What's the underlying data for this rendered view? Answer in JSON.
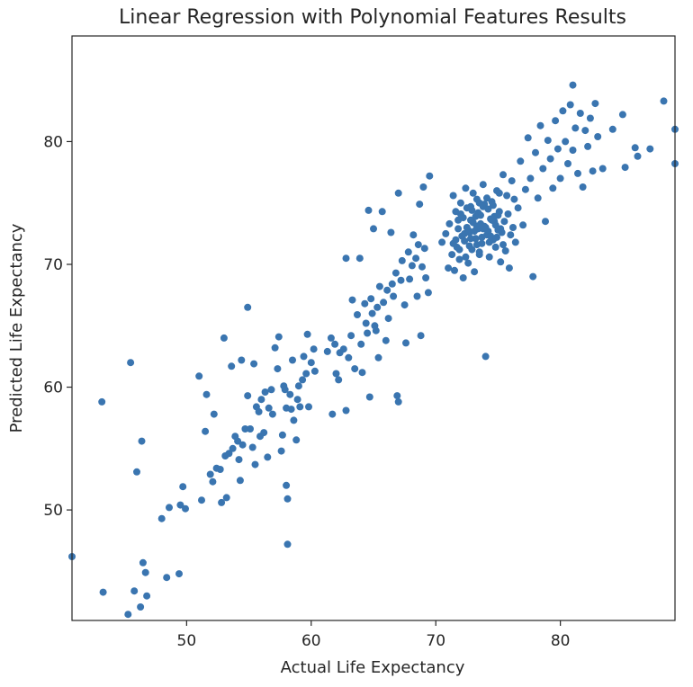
{
  "chart_data": {
    "type": "scatter",
    "title": "Linear Regression with Polynomial Features Results",
    "xlabel": "Actual Life Expectancy",
    "ylabel": "Predicted Life Expectancy",
    "xlim": [
      40.8,
      89.2
    ],
    "ylim": [
      41.0,
      88.6
    ],
    "xticks": [
      50,
      60,
      70,
      80
    ],
    "yticks": [
      50,
      60,
      70,
      80
    ],
    "grid": false,
    "color": "#3a75b0",
    "series": [
      {
        "points": [
          [
            40.8,
            46.2
          ],
          [
            43.3,
            43.3
          ],
          [
            43.2,
            58.8
          ],
          [
            45.3,
            41.5
          ],
          [
            45.5,
            62.0
          ],
          [
            45.8,
            43.4
          ],
          [
            46.0,
            53.1
          ],
          [
            46.3,
            42.1
          ],
          [
            46.5,
            45.7
          ],
          [
            46.4,
            55.6
          ],
          [
            46.7,
            44.9
          ],
          [
            46.8,
            43.0
          ],
          [
            48.0,
            49.3
          ],
          [
            48.4,
            44.5
          ],
          [
            48.6,
            50.2
          ],
          [
            49.4,
            44.8
          ],
          [
            49.5,
            50.4
          ],
          [
            49.7,
            51.9
          ],
          [
            49.9,
            50.1
          ],
          [
            51.0,
            60.9
          ],
          [
            51.2,
            50.8
          ],
          [
            51.5,
            56.4
          ],
          [
            51.6,
            59.4
          ],
          [
            51.9,
            52.9
          ],
          [
            52.1,
            52.3
          ],
          [
            52.2,
            57.8
          ],
          [
            52.4,
            53.4
          ],
          [
            52.7,
            53.3
          ],
          [
            52.8,
            50.6
          ],
          [
            53.0,
            64.0
          ],
          [
            53.1,
            54.4
          ],
          [
            53.2,
            51.0
          ],
          [
            53.4,
            54.6
          ],
          [
            53.6,
            61.7
          ],
          [
            53.7,
            55.0
          ],
          [
            53.9,
            56.0
          ],
          [
            54.1,
            55.6
          ],
          [
            54.2,
            54.1
          ],
          [
            54.3,
            52.4
          ],
          [
            54.4,
            62.2
          ],
          [
            54.5,
            55.3
          ],
          [
            54.7,
            56.6
          ],
          [
            54.9,
            59.3
          ],
          [
            54.9,
            66.5
          ],
          [
            55.1,
            56.6
          ],
          [
            55.3,
            55.1
          ],
          [
            55.4,
            61.9
          ],
          [
            55.5,
            53.7
          ],
          [
            55.6,
            58.4
          ],
          [
            55.8,
            58.0
          ],
          [
            55.9,
            56.0
          ],
          [
            56.0,
            59.0
          ],
          [
            56.2,
            56.3
          ],
          [
            56.3,
            59.6
          ],
          [
            56.5,
            54.3
          ],
          [
            56.6,
            58.3
          ],
          [
            56.8,
            59.8
          ],
          [
            56.9,
            57.8
          ],
          [
            57.1,
            63.2
          ],
          [
            57.3,
            61.5
          ],
          [
            57.4,
            64.1
          ],
          [
            57.6,
            54.8
          ],
          [
            57.7,
            56.1
          ],
          [
            57.8,
            60.1
          ],
          [
            57.9,
            59.8
          ],
          [
            58.0,
            58.3
          ],
          [
            58.0,
            52.0
          ],
          [
            58.1,
            50.9
          ],
          [
            58.1,
            47.2
          ],
          [
            58.3,
            59.4
          ],
          [
            58.4,
            58.2
          ],
          [
            58.5,
            62.2
          ],
          [
            58.6,
            57.3
          ],
          [
            58.8,
            55.7
          ],
          [
            58.9,
            59.0
          ],
          [
            59.0,
            60.1
          ],
          [
            59.1,
            58.4
          ],
          [
            59.3,
            60.6
          ],
          [
            59.4,
            62.5
          ],
          [
            59.6,
            61.1
          ],
          [
            59.7,
            64.3
          ],
          [
            59.8,
            58.4
          ],
          [
            60.0,
            62.0
          ],
          [
            60.2,
            63.1
          ],
          [
            60.3,
            61.3
          ],
          [
            61.3,
            62.9
          ],
          [
            61.6,
            64.0
          ],
          [
            61.7,
            57.8
          ],
          [
            61.9,
            63.5
          ],
          [
            62.0,
            61.1
          ],
          [
            62.2,
            60.6
          ],
          [
            62.3,
            62.8
          ],
          [
            62.6,
            63.1
          ],
          [
            62.8,
            70.5
          ],
          [
            62.8,
            58.1
          ],
          [
            63.0,
            62.4
          ],
          [
            63.2,
            64.2
          ],
          [
            63.3,
            67.1
          ],
          [
            63.5,
            61.5
          ],
          [
            63.7,
            65.9
          ],
          [
            63.9,
            70.5
          ],
          [
            64.0,
            63.5
          ],
          [
            64.1,
            61.2
          ],
          [
            64.3,
            66.8
          ],
          [
            64.4,
            65.2
          ],
          [
            64.5,
            64.4
          ],
          [
            64.6,
            74.4
          ],
          [
            64.7,
            59.2
          ],
          [
            64.8,
            67.2
          ],
          [
            64.9,
            66.0
          ],
          [
            65.0,
            72.9
          ],
          [
            65.1,
            65.0
          ],
          [
            65.2,
            64.6
          ],
          [
            65.3,
            66.5
          ],
          [
            65.4,
            62.4
          ],
          [
            65.5,
            68.2
          ],
          [
            65.7,
            74.3
          ],
          [
            65.8,
            66.9
          ],
          [
            66.0,
            63.8
          ],
          [
            66.1,
            67.9
          ],
          [
            66.2,
            65.6
          ],
          [
            66.4,
            72.6
          ],
          [
            66.5,
            68.4
          ],
          [
            66.6,
            67.4
          ],
          [
            66.8,
            69.3
          ],
          [
            66.9,
            59.3
          ],
          [
            67.0,
            58.8
          ],
          [
            67.0,
            75.8
          ],
          [
            67.2,
            68.7
          ],
          [
            67.3,
            70.3
          ],
          [
            67.5,
            66.7
          ],
          [
            67.6,
            63.6
          ],
          [
            67.8,
            71.0
          ],
          [
            67.9,
            68.8
          ],
          [
            68.1,
            69.9
          ],
          [
            68.2,
            72.4
          ],
          [
            68.4,
            70.5
          ],
          [
            68.5,
            67.4
          ],
          [
            68.6,
            71.6
          ],
          [
            68.7,
            74.9
          ],
          [
            68.8,
            64.2
          ],
          [
            68.9,
            69.8
          ],
          [
            69.0,
            76.3
          ],
          [
            69.1,
            71.3
          ],
          [
            69.2,
            68.9
          ],
          [
            69.4,
            67.7
          ],
          [
            69.5,
            77.2
          ],
          [
            70.5,
            71.8
          ],
          [
            70.8,
            72.5
          ],
          [
            71.0,
            69.7
          ],
          [
            71.1,
            73.3
          ],
          [
            71.3,
            70.8
          ],
          [
            71.4,
            75.6
          ],
          [
            71.5,
            69.5
          ],
          [
            71.6,
            72.0
          ],
          [
            71.7,
            71.4
          ],
          [
            71.8,
            73.6
          ],
          [
            71.9,
            70.4
          ],
          [
            72.0,
            74.1
          ],
          [
            72.1,
            72.3
          ],
          [
            72.2,
            68.9
          ],
          [
            72.3,
            71.9
          ],
          [
            72.4,
            76.2
          ],
          [
            72.5,
            73.0
          ],
          [
            72.6,
            70.1
          ],
          [
            72.7,
            72.6
          ],
          [
            72.8,
            74.7
          ],
          [
            72.9,
            71.2
          ],
          [
            73.0,
            73.4
          ],
          [
            73.1,
            69.4
          ],
          [
            73.2,
            72.1
          ],
          [
            73.3,
            75.3
          ],
          [
            73.4,
            72.9
          ],
          [
            73.5,
            70.8
          ],
          [
            73.6,
            74.0
          ],
          [
            73.7,
            71.7
          ],
          [
            73.8,
            76.5
          ],
          [
            73.9,
            73.1
          ],
          [
            74.0,
            62.5
          ],
          [
            74.1,
            72.4
          ],
          [
            74.2,
            74.5
          ],
          [
            74.3,
            70.6
          ],
          [
            74.4,
            73.7
          ],
          [
            74.5,
            75.1
          ],
          [
            74.6,
            72.0
          ],
          [
            74.7,
            73.9
          ],
          [
            74.8,
            71.4
          ],
          [
            74.9,
            76.0
          ],
          [
            75.0,
            72.8
          ],
          [
            75.1,
            74.3
          ],
          [
            75.2,
            70.2
          ],
          [
            75.3,
            72.6
          ],
          [
            75.4,
            77.3
          ],
          [
            75.5,
            73.5
          ],
          [
            75.6,
            71.1
          ],
          [
            75.7,
            75.6
          ],
          [
            75.8,
            74.1
          ],
          [
            75.9,
            69.7
          ],
          [
            76.0,
            72.4
          ],
          [
            76.1,
            76.8
          ],
          [
            76.2,
            73.0
          ],
          [
            76.3,
            75.3
          ],
          [
            76.4,
            71.8
          ],
          [
            76.6,
            74.6
          ],
          [
            76.8,
            78.4
          ],
          [
            77.0,
            73.2
          ],
          [
            77.2,
            76.1
          ],
          [
            77.4,
            80.3
          ],
          [
            77.6,
            77.0
          ],
          [
            77.8,
            69.0
          ],
          [
            78.0,
            79.1
          ],
          [
            78.2,
            75.4
          ],
          [
            78.4,
            81.3
          ],
          [
            78.6,
            77.8
          ],
          [
            78.8,
            73.5
          ],
          [
            79.0,
            80.1
          ],
          [
            79.2,
            78.6
          ],
          [
            79.4,
            76.2
          ],
          [
            79.6,
            81.7
          ],
          [
            79.8,
            79.4
          ],
          [
            80.0,
            77.0
          ],
          [
            80.2,
            82.5
          ],
          [
            80.4,
            80.0
          ],
          [
            80.6,
            78.2
          ],
          [
            80.8,
            83.0
          ],
          [
            81.0,
            79.3
          ],
          [
            81.0,
            84.6
          ],
          [
            81.2,
            81.1
          ],
          [
            81.4,
            77.4
          ],
          [
            81.6,
            82.3
          ],
          [
            81.8,
            76.3
          ],
          [
            82.0,
            80.9
          ],
          [
            82.2,
            79.6
          ],
          [
            82.4,
            81.9
          ],
          [
            82.6,
            77.6
          ],
          [
            82.8,
            83.1
          ],
          [
            83.0,
            80.4
          ],
          [
            83.4,
            77.8
          ],
          [
            84.2,
            81.0
          ],
          [
            85.0,
            82.2
          ],
          [
            85.2,
            77.9
          ],
          [
            86.0,
            79.5
          ],
          [
            86.2,
            78.8
          ],
          [
            87.2,
            79.4
          ],
          [
            88.3,
            83.3
          ],
          [
            89.2,
            81.0
          ],
          [
            89.2,
            78.2
          ],
          [
            72.2,
            73.8
          ],
          [
            72.8,
            73.6
          ],
          [
            73.4,
            74.2
          ],
          [
            73.8,
            72.9
          ],
          [
            74.2,
            72.7
          ],
          [
            73.6,
            73.3
          ],
          [
            72.9,
            74.4
          ],
          [
            74.0,
            73.0
          ],
          [
            73.2,
            73.9
          ],
          [
            74.4,
            72.3
          ],
          [
            72.6,
            72.8
          ],
          [
            73.0,
            75.8
          ],
          [
            74.6,
            74.8
          ],
          [
            73.5,
            71.0
          ],
          [
            72.4,
            70.6
          ],
          [
            74.8,
            73.2
          ],
          [
            71.8,
            72.9
          ],
          [
            73.3,
            71.6
          ],
          [
            75.2,
            72.9
          ],
          [
            72.0,
            75.0
          ],
          [
            74.1,
            75.4
          ],
          [
            73.7,
            72.2
          ],
          [
            72.3,
            72.5
          ],
          [
            75.0,
            74.0
          ],
          [
            71.6,
            74.3
          ],
          [
            73.9,
            74.9
          ],
          [
            74.3,
            71.8
          ],
          [
            72.7,
            71.5
          ],
          [
            73.1,
            72.7
          ],
          [
            74.7,
            73.5
          ],
          [
            75.4,
            71.6
          ],
          [
            72.5,
            74.6
          ],
          [
            73.5,
            75.0
          ],
          [
            74.9,
            72.2
          ],
          [
            71.9,
            71.2
          ],
          [
            73.3,
            73.1
          ],
          [
            74.5,
            73.6
          ],
          [
            72.8,
            72.1
          ],
          [
            73.8,
            74.7
          ],
          [
            71.4,
            71.7
          ],
          [
            75.1,
            75.8
          ]
        ]
      }
    ]
  }
}
